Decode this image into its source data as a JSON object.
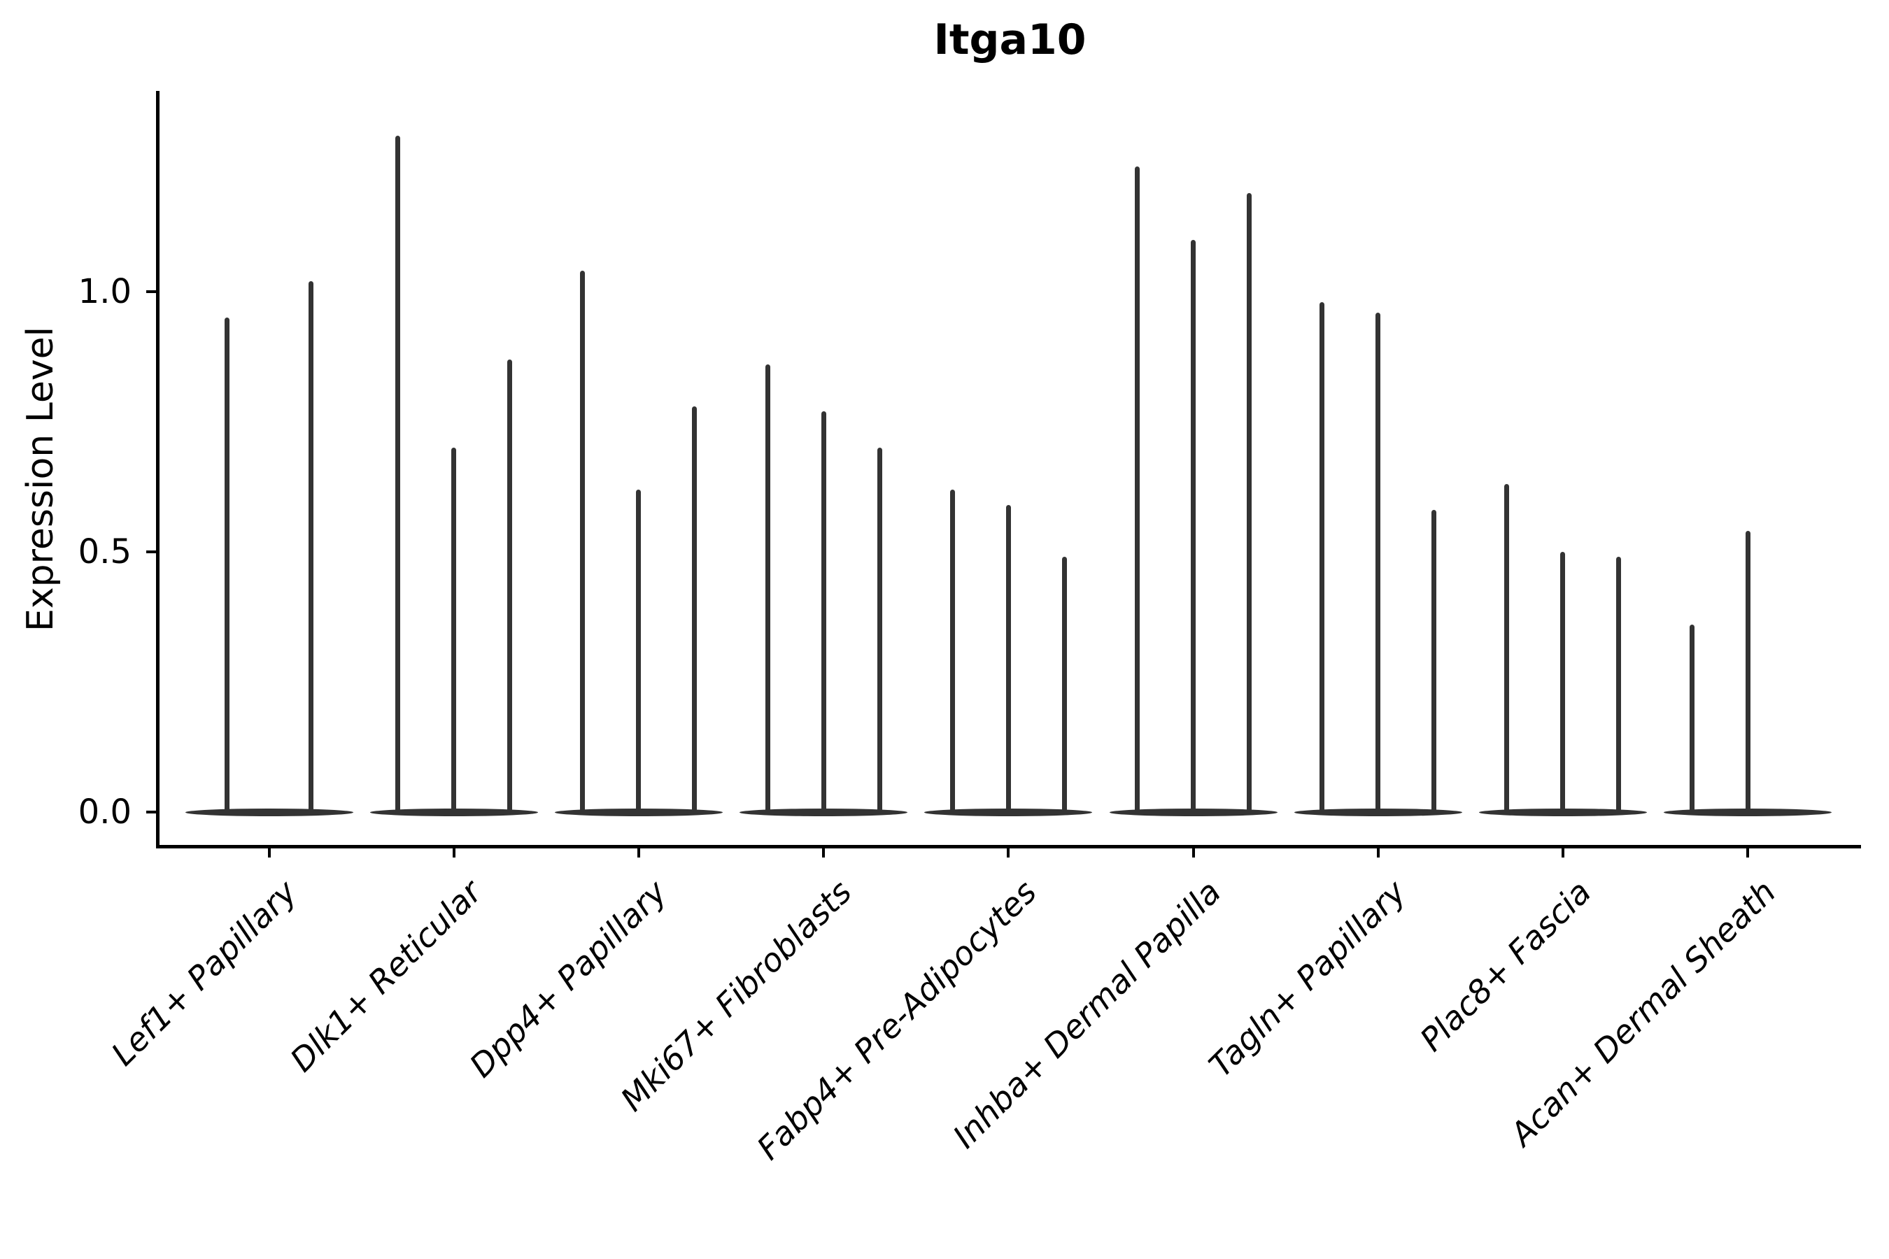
{
  "chart_data": {
    "type": "violin",
    "title": "Itga10",
    "xlabel": "",
    "ylabel": "Expression Level",
    "yticks": [
      0.0,
      0.5,
      1.0
    ],
    "ylim": [
      -0.06,
      1.39
    ],
    "grid": false,
    "legend": null,
    "violin_color": "#333333",
    "axis_color": "#000000",
    "categories": [
      "Lef1+ Papillary",
      "Dlk1+ Reticular",
      "Dpp4+ Papillary",
      "Mki67+ Fibroblasts",
      "Fabp4+ Pre-Adipocytes",
      "Inhba+ Dermal Papilla",
      "Tagln+ Papillary",
      "Plac8+ Fascia",
      "Acan+ Dermal Sheath"
    ],
    "groups": [
      {
        "label": "Lef1+ Papillary",
        "n_slots": 2,
        "violins": [
          {
            "slot": 0,
            "peak": 0.95
          },
          {
            "slot": 1,
            "peak": 1.02
          }
        ]
      },
      {
        "label": "Dlk1+ Reticular",
        "n_slots": 3,
        "violins": [
          {
            "slot": 0,
            "peak": 1.3
          },
          {
            "slot": 1,
            "peak": 0.7
          },
          {
            "slot": 2,
            "peak": 0.87
          }
        ]
      },
      {
        "label": "Dpp4+ Papillary",
        "n_slots": 3,
        "violins": [
          {
            "slot": 0,
            "peak": 1.04
          },
          {
            "slot": 1,
            "peak": 0.62
          },
          {
            "slot": 2,
            "peak": 0.78
          }
        ]
      },
      {
        "label": "Mki67+ Fibroblasts",
        "n_slots": 3,
        "violins": [
          {
            "slot": 0,
            "peak": 0.86
          },
          {
            "slot": 1,
            "peak": 0.77
          },
          {
            "slot": 2,
            "peak": 0.7
          }
        ]
      },
      {
        "label": "Fabp4+ Pre-Adipocytes",
        "n_slots": 3,
        "violins": [
          {
            "slot": 0,
            "peak": 0.62
          },
          {
            "slot": 1,
            "peak": 0.59
          },
          {
            "slot": 2,
            "peak": 0.49
          }
        ]
      },
      {
        "label": "Inhba+ Dermal Papilla",
        "n_slots": 3,
        "violins": [
          {
            "slot": 0,
            "peak": 1.24
          },
          {
            "slot": 1,
            "peak": 1.1
          },
          {
            "slot": 2,
            "peak": 1.19
          }
        ]
      },
      {
        "label": "Tagln+ Papillary",
        "n_slots": 3,
        "violins": [
          {
            "slot": 0,
            "peak": 0.98
          },
          {
            "slot": 1,
            "peak": 0.96
          },
          {
            "slot": 2,
            "peak": 0.58
          }
        ]
      },
      {
        "label": "Plac8+ Fascia",
        "n_slots": 3,
        "violins": [
          {
            "slot": 0,
            "peak": 0.63
          },
          {
            "slot": 1,
            "peak": 0.5
          },
          {
            "slot": 2,
            "peak": 0.49
          }
        ]
      },
      {
        "label": "Acan+ Dermal Sheath",
        "n_slots": 3,
        "violins": [
          {
            "slot": 0,
            "peak": 0.36
          },
          {
            "slot": 1,
            "peak": 0.54
          }
        ]
      }
    ]
  }
}
